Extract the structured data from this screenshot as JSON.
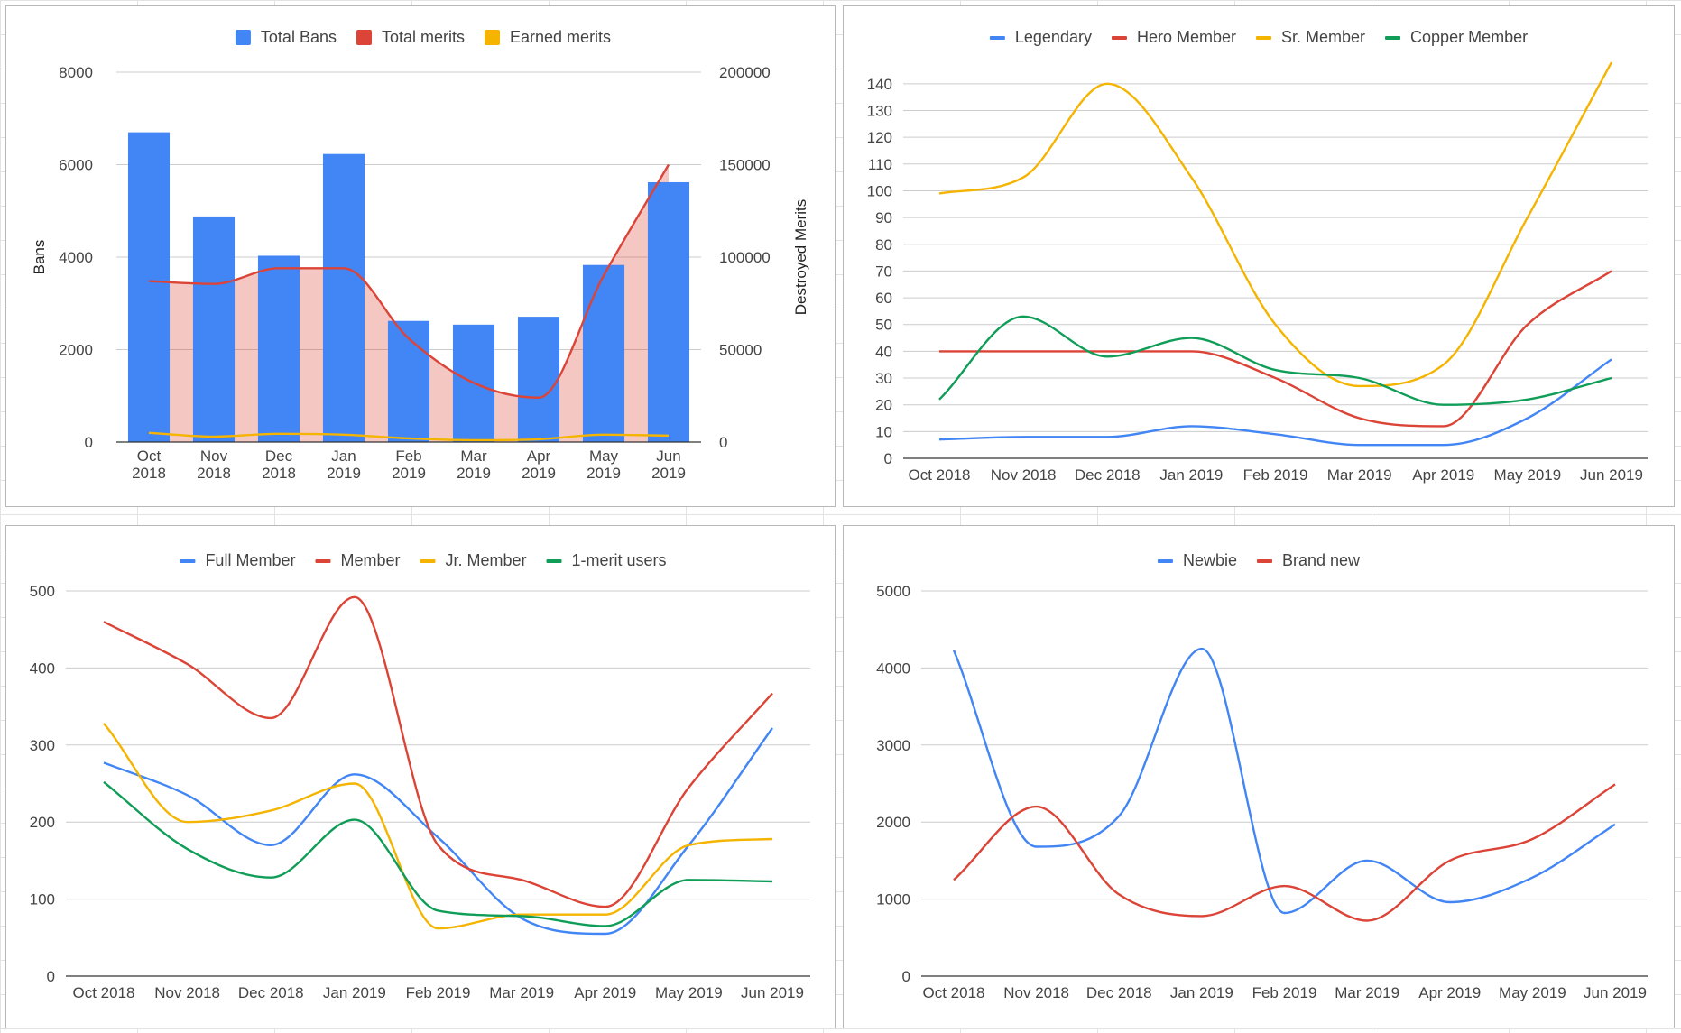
{
  "chart_data": [
    {
      "type": "bar+area+line",
      "title": "",
      "categories": [
        "Oct 2018",
        "Nov 2018",
        "Dec 2018",
        "Jan 2019",
        "Feb 2019",
        "Mar 2019",
        "Apr 2019",
        "May 2019",
        "Jun 2019"
      ],
      "category_lines": [
        [
          "Oct",
          "2018"
        ],
        [
          "Nov",
          "2018"
        ],
        [
          "Dec",
          "2018"
        ],
        [
          "Jan",
          "2019"
        ],
        [
          "Feb",
          "2019"
        ],
        [
          "Mar",
          "2019"
        ],
        [
          "Apr",
          "2019"
        ],
        [
          "May",
          "2019"
        ],
        [
          "Jun",
          "2019"
        ]
      ],
      "ylabel": "Bans",
      "y2label": "Destroyed Merits",
      "ylim": [
        0,
        8000
      ],
      "yticks": [
        0,
        2000,
        4000,
        6000,
        8000
      ],
      "y2lim": [
        0,
        200000
      ],
      "y2ticks": [
        0,
        50000,
        100000,
        150000,
        200000
      ],
      "legend_position": "top",
      "series": [
        {
          "name": "Total Bans",
          "kind": "bar",
          "axis": "left",
          "color": "#4285f4",
          "values": [
            6700,
            4880,
            4030,
            6230,
            2620,
            2540,
            2710,
            3830,
            5620
          ]
        },
        {
          "name": "Total merits",
          "kind": "area",
          "axis": "right",
          "color": "#db4437",
          "values": [
            87000,
            85500,
            94000,
            94000,
            56000,
            32000,
            24000,
            90000,
            150000
          ]
        },
        {
          "name": "Earned merits",
          "kind": "line",
          "axis": "right",
          "color": "#f4b400",
          "values": [
            5000,
            3000,
            4500,
            4000,
            2000,
            1000,
            1500,
            4000,
            3500
          ]
        }
      ]
    },
    {
      "type": "line",
      "title": "",
      "categories": [
        "Oct 2018",
        "Nov 2018",
        "Dec 2018",
        "Jan 2019",
        "Feb 2019",
        "Mar 2019",
        "Apr 2019",
        "May 2019",
        "Jun 2019"
      ],
      "ylim": [
        0,
        145
      ],
      "yticks": [
        0,
        10,
        20,
        30,
        40,
        50,
        60,
        70,
        80,
        90,
        100,
        110,
        120,
        130,
        140
      ],
      "legend_position": "top",
      "series": [
        {
          "name": "Legendary",
          "color": "#4285f4",
          "values": [
            7,
            8,
            8,
            12,
            9,
            5,
            5,
            15,
            37
          ]
        },
        {
          "name": "Hero Member",
          "color": "#db4437",
          "values": [
            40,
            40,
            40,
            40,
            30,
            15,
            12,
            50,
            70
          ]
        },
        {
          "name": "Sr. Member",
          "color": "#f4b400",
          "values": [
            99,
            105,
            140,
            105,
            50,
            27,
            35,
            90,
            148
          ]
        },
        {
          "name": "Copper Member",
          "color": "#0f9d58",
          "values": [
            22,
            53,
            38,
            45,
            33,
            30,
            20,
            22,
            30
          ]
        }
      ]
    },
    {
      "type": "line",
      "title": "",
      "categories": [
        "Oct 2018",
        "Nov 2018",
        "Dec 2018",
        "Jan 2019",
        "Feb 2019",
        "Mar 2019",
        "Apr 2019",
        "May 2019",
        "Jun 2019"
      ],
      "ylim": [
        0,
        500
      ],
      "yticks": [
        0,
        100,
        200,
        300,
        400,
        500
      ],
      "legend_position": "top",
      "series": [
        {
          "name": "Full Member",
          "color": "#4285f4",
          "values": [
            277,
            235,
            170,
            262,
            180,
            75,
            55,
            170,
            322
          ]
        },
        {
          "name": "Member",
          "color": "#db4437",
          "values": [
            460,
            405,
            335,
            492,
            170,
            125,
            90,
            245,
            367
          ]
        },
        {
          "name": "Jr. Member",
          "color": "#f4b400",
          "values": [
            328,
            200,
            215,
            250,
            62,
            80,
            80,
            170,
            178
          ]
        },
        {
          "name": "1-merit users",
          "color": "#0f9d58",
          "values": [
            252,
            165,
            128,
            203,
            85,
            78,
            65,
            125,
            123
          ]
        }
      ]
    },
    {
      "type": "line",
      "title": "",
      "categories": [
        "Oct 2018",
        "Nov 2018",
        "Dec 2018",
        "Jan 2019",
        "Feb 2019",
        "Mar 2019",
        "Apr 2019",
        "May 2019",
        "Jun 2019"
      ],
      "ylim": [
        0,
        5000
      ],
      "yticks": [
        0,
        1000,
        2000,
        3000,
        4000,
        5000
      ],
      "legend_position": "top",
      "series": [
        {
          "name": "Newbie",
          "color": "#4285f4",
          "values": [
            4230,
            1680,
            2080,
            4250,
            820,
            1500,
            960,
            1280,
            1970
          ]
        },
        {
          "name": "Brand new",
          "color": "#db4437",
          "values": [
            1250,
            2200,
            1060,
            780,
            1170,
            720,
            1500,
            1780,
            2490
          ]
        }
      ]
    }
  ]
}
